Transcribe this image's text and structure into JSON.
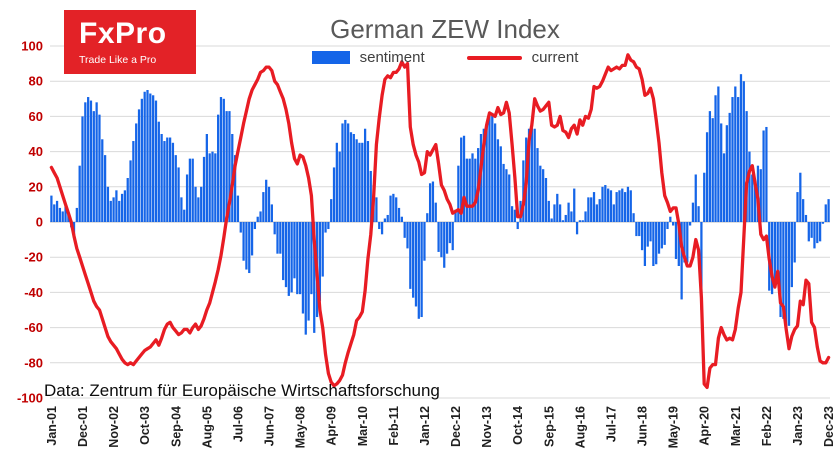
{
  "logo": {
    "brand": "FxPro",
    "tagline": "Trade Like a Pro",
    "bg_color": "#e32227"
  },
  "title": "German ZEW Index",
  "legend": [
    {
      "label": "sentiment",
      "color": "#1565e8"
    },
    {
      "label": "current",
      "color": "#e81c23"
    }
  ],
  "source_note": "Data: Zentrum für Europäische Wirtschaftsforschung",
  "axis": {
    "y_tick_color": "#c00000",
    "grid_color": "#d9d9d9",
    "zero_line_color": "#bdbdbd"
  },
  "chart_data": {
    "type": "bar",
    "title": "German ZEW Index",
    "xlabel": "",
    "ylabel": "",
    "ylim": [
      -100,
      100
    ],
    "y_tick_step": 20,
    "grid": true,
    "legend_position": "top",
    "x_start": "Jan-01",
    "x_end": "Dec-23",
    "x_frequency": "monthly",
    "x_tick_interval_months": 11,
    "x_tick_labels": [
      "Jan-01",
      "Dec-01",
      "Nov-02",
      "Oct-03",
      "Sep-04",
      "Aug-05",
      "Jul-06",
      "Jun-07",
      "May-08",
      "Apr-09",
      "Mar-10",
      "Feb-11",
      "Jan-12",
      "Dec-12",
      "Nov-13",
      "Oct-14",
      "Sep-15",
      "Aug-16",
      "Jul-17",
      "Jun-18",
      "May-19",
      "Apr-20",
      "Mar-21",
      "Feb-22",
      "Jan-23",
      "Dec-23"
    ],
    "series": [
      {
        "name": "sentiment",
        "type": "bar",
        "color": "#1565e8",
        "values": [
          15,
          10,
          12,
          8,
          6,
          9,
          4,
          -3,
          -9,
          8,
          32,
          60,
          68,
          71,
          69,
          63,
          68,
          61,
          47,
          38,
          20,
          12,
          14,
          18,
          12,
          16,
          18,
          25,
          35,
          46,
          56,
          64,
          70,
          74,
          75,
          73,
          72,
          69,
          57,
          50,
          46,
          48,
          48,
          45,
          38,
          31,
          14,
          7,
          27,
          36,
          36,
          20,
          14,
          20,
          37,
          50,
          39,
          40,
          39,
          61,
          71,
          70,
          63,
          63,
          50,
          38,
          15,
          -6,
          -22,
          -27,
          -29,
          -19,
          -4,
          3,
          6,
          17,
          24,
          20,
          10,
          -7,
          -18,
          -18,
          -33,
          -37,
          -42,
          -40,
          -32,
          -41,
          -41,
          -52,
          -64,
          -56,
          -41,
          -63,
          -54,
          -45,
          -31,
          -6,
          -4,
          13,
          31,
          45,
          40,
          56,
          58,
          56,
          51,
          50,
          47,
          45,
          45,
          53,
          46,
          29,
          21,
          14,
          -4,
          -7,
          2,
          4,
          15,
          16,
          14,
          8,
          3,
          -9,
          -15,
          -38,
          -43,
          -48,
          -55,
          -54,
          -22,
          5,
          22,
          23,
          11,
          -17,
          -20,
          -26,
          -18,
          -12,
          -16,
          7,
          32,
          48,
          49,
          36,
          36,
          39,
          36,
          42,
          50,
          53,
          55,
          62,
          62,
          56,
          47,
          43,
          33,
          30,
          27,
          9,
          7,
          -4,
          12,
          35,
          48,
          53,
          55,
          53,
          42,
          32,
          30,
          25,
          12,
          2,
          10,
          16,
          10,
          1,
          4,
          11,
          6,
          19,
          -7,
          1,
          1,
          6,
          14,
          14,
          17,
          10,
          13,
          20,
          21,
          19,
          18,
          10,
          17,
          18,
          19,
          17,
          20,
          18,
          5,
          -8,
          -8,
          -16,
          -25,
          -14,
          -11,
          -25,
          -24,
          -18,
          -15,
          -13,
          -4,
          3,
          -2,
          -21,
          -25,
          -44,
          -23,
          -23,
          -2,
          11,
          27,
          9,
          -50,
          28,
          51,
          63,
          59,
          72,
          77,
          56,
          39,
          55,
          62,
          71,
          77,
          71,
          84,
          80,
          63,
          40,
          27,
          22,
          32,
          30,
          52,
          54,
          -39,
          -41,
          -34,
          -28,
          -54,
          -55,
          -62,
          -59,
          -37,
          -23,
          17,
          28,
          13,
          4,
          -11,
          -9,
          -15,
          -12,
          -11,
          -1,
          10,
          13
        ]
      },
      {
        "name": "current",
        "type": "line",
        "color": "#e81c23",
        "values": [
          31,
          28,
          25,
          20,
          15,
          10,
          5,
          0,
          -8,
          -15,
          -20,
          -25,
          -30,
          -35,
          -40,
          -45,
          -48,
          -50,
          -55,
          -60,
          -65,
          -68,
          -70,
          -72,
          -75,
          -78,
          -80,
          -81,
          -80,
          -81,
          -79,
          -77,
          -75,
          -73,
          -72,
          -71,
          -69,
          -67,
          -70,
          -66,
          -61,
          -58,
          -57,
          -60,
          -62,
          -64,
          -63,
          -61,
          -61,
          -63,
          -60,
          -58,
          -61,
          -59,
          -55,
          -50,
          -46,
          -40,
          -34,
          -27,
          -19,
          -9,
          2,
          11,
          21,
          32,
          40,
          48,
          56,
          63,
          70,
          75,
          78,
          81,
          85,
          86,
          88,
          88,
          86,
          80,
          78,
          74,
          70,
          64,
          56,
          45,
          36,
          33,
          38,
          37,
          32,
          25,
          15,
          -10,
          -30,
          -50,
          -60,
          -75,
          -86,
          -91,
          -93,
          -92,
          -90,
          -87,
          -80,
          -74,
          -69,
          -64,
          -56,
          -54,
          -51,
          -39,
          -21,
          -7,
          14,
          44,
          59,
          72,
          81,
          83,
          82,
          85,
          85,
          87,
          91,
          88,
          90,
          54,
          44,
          38,
          34,
          27,
          28,
          40,
          38,
          41,
          44,
          33,
          21,
          18,
          13,
          10,
          5,
          6,
          7,
          5,
          14,
          9,
          9,
          9,
          11,
          18,
          31,
          44,
          55,
          62,
          61,
          60,
          65,
          61,
          62,
          68,
          62,
          44,
          25,
          3,
          3,
          10,
          22,
          46,
          55,
          70,
          66,
          63,
          64,
          66,
          68,
          55,
          54,
          55,
          60,
          52,
          51,
          48,
          53,
          55,
          50,
          58,
          55,
          60,
          59,
          64,
          77,
          76,
          77,
          80,
          84,
          88,
          86,
          87,
          88,
          87,
          89,
          89,
          95,
          92,
          91,
          88,
          87,
          81,
          72,
          73,
          76,
          70,
          58,
          45,
          28,
          15,
          11,
          6,
          8,
          8,
          -1,
          -14,
          -20,
          -25,
          -25,
          -20,
          -10,
          -16,
          -43,
          -92,
          -94,
          -83,
          -81,
          -81,
          -66,
          -60,
          -64,
          -67,
          -66,
          -67,
          -61,
          -49,
          -40,
          -9,
          22,
          29,
          32,
          22,
          13,
          -7,
          -10,
          -8,
          -21,
          -31,
          -37,
          -28,
          -46,
          -48,
          -61,
          -72,
          -65,
          -61,
          -59,
          -45,
          -47,
          -33,
          -35,
          -57,
          -60,
          -71,
          -79,
          -80,
          -80,
          -77
        ]
      }
    ]
  }
}
